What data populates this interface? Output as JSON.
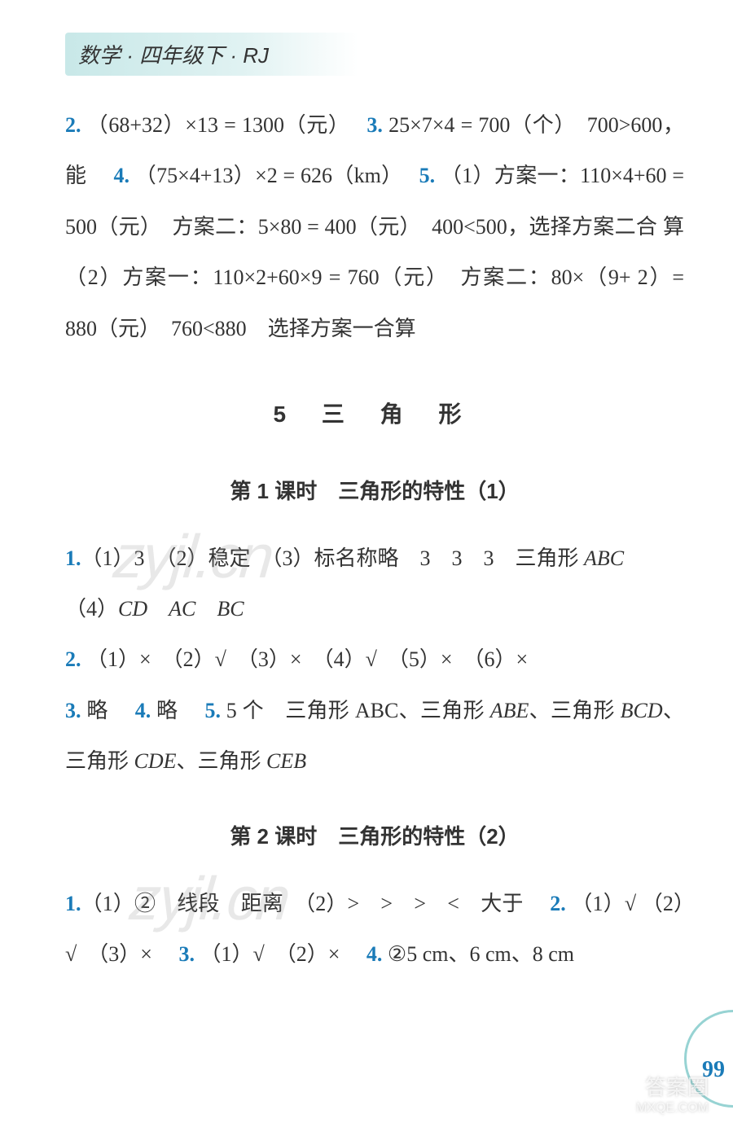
{
  "header": {
    "text": "数学 · 四年级下 · RJ"
  },
  "para1": {
    "n2": "2.",
    "t2": "（68+32）×13 = 1300（元）",
    "n3": "3.",
    "t3": "25×7×4 = 700（个）　700>600，",
    "t3b": "能",
    "n4": "4.",
    "t4": "（75×4+13）×2 = 626（km）",
    "n5": "5.",
    "t5a": "（1）方案一：110×4+60 =",
    "t5b": "500（元）　方案二：5×80 = 400（元）　400<500，选择方案二合",
    "t5c": "算　（2）方案一：110×2+60×9 = 760（元）　方案二：80×（9+",
    "t5d": "2）= 880（元）　760<880　选择方案一合算"
  },
  "chapter": {
    "title": "5 三 角 形"
  },
  "lesson1": {
    "title": "第 1 课时　三角形的特性（1）",
    "n1": "1.",
    "t1a": "（1）3　（2）稳定　（3）标名称略　3　3　3　三角形 ",
    "t1a_abc": "ABC",
    "t1b_pre": "（4）",
    "t1b_cd": "CD",
    "t1b_ac": "AC",
    "t1b_bc": "BC",
    "n2": "2.",
    "t2": "（1）×　（2）√　（3）×　（4）√　（5）×　（6）×",
    "n3": "3.",
    "t3": "略",
    "n4": "4.",
    "t4": "略",
    "n5": "5.",
    "t5a": "5 个　三角形 ABC、三角形 ",
    "t5a_abe": "ABE",
    "t5a_mid": "、三角形 ",
    "t5a_bcd": "BCD",
    "t5a_end": "、",
    "t5b_pre": "三角形 ",
    "t5b_cde": "CDE",
    "t5b_mid": "、三角形 ",
    "t5b_ceb": "CEB"
  },
  "lesson2": {
    "title": "第 2 课时　三角形的特性（2）",
    "n1": "1.",
    "t1": "（1）②　线段　距离　（2）>　>　>　<　大于",
    "n2": "2.",
    "t2a": "（1）√",
    "t2b": "（2）√　（3）×",
    "n3": "3.",
    "t3": "（1）√　（2）×",
    "n4": "4.",
    "t4": "②5 cm、6 cm、8 cm"
  },
  "pageNumber": "99",
  "watermark": "zyjl.cn",
  "footerWatermark": {
    "cn": "答案圈",
    "en": "MXQE.COM"
  },
  "colors": {
    "headerBg": "#c8e8e8",
    "numColor": "#1a7bb8",
    "textColor": "#333333",
    "arcColor": "#7ec9c9"
  }
}
